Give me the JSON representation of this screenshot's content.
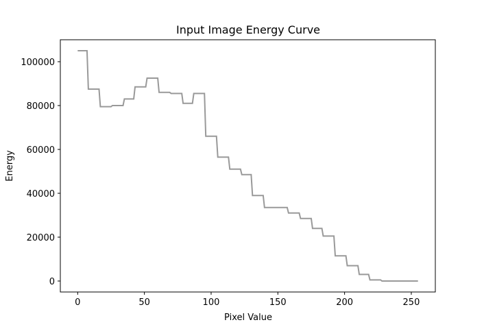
{
  "chart_data": {
    "type": "line",
    "title": "Input Image Energy Curve",
    "xlabel": "Pixel Value",
    "ylabel": "Energy",
    "xlim": [
      -13,
      268
    ],
    "ylim": [
      -5000,
      110000
    ],
    "xticks": [
      0,
      50,
      100,
      150,
      200,
      250
    ],
    "yticks": [
      0,
      20000,
      40000,
      60000,
      80000,
      100000
    ],
    "grid": false,
    "line_color": "#999999",
    "series": [
      {
        "x": [
          0,
          7,
          8,
          16,
          17,
          25,
          26,
          34,
          35,
          42,
          43,
          51,
          52,
          60,
          61,
          69,
          70,
          78,
          79,
          86,
          87,
          95,
          96,
          104,
          105,
          113,
          114,
          122,
          123,
          130,
          131,
          139,
          140,
          148,
          149,
          157,
          158,
          166,
          167,
          175,
          176,
          183,
          184,
          192,
          193,
          201,
          202,
          210,
          211,
          218,
          219,
          227,
          228,
          236,
          237,
          245,
          246,
          255
        ],
        "y": [
          105000,
          105000,
          87500,
          87500,
          79500,
          79500,
          80000,
          80000,
          83000,
          83000,
          88500,
          88500,
          92500,
          92500,
          86000,
          86000,
          85500,
          85500,
          81000,
          81000,
          85500,
          85500,
          66000,
          66000,
          56500,
          56500,
          51000,
          51000,
          48500,
          48500,
          39000,
          39000,
          33500,
          33500,
          33500,
          33500,
          31000,
          31000,
          28500,
          28500,
          24000,
          24000,
          20500,
          20500,
          11500,
          11500,
          7000,
          7000,
          3000,
          3000,
          500,
          500,
          0,
          0,
          0,
          0,
          0,
          0
        ]
      }
    ]
  }
}
